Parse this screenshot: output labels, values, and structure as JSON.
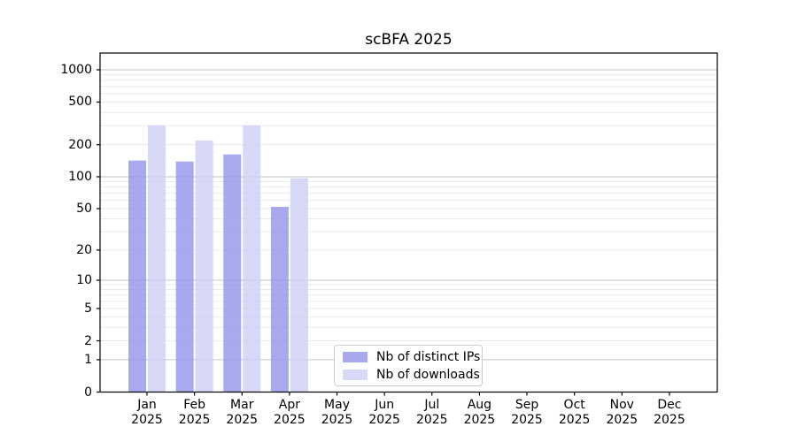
{
  "chart_data": {
    "type": "bar",
    "title": "scBFA 2025",
    "categories": [
      "Jan",
      "Feb",
      "Mar",
      "Apr",
      "May",
      "Jun",
      "Jul",
      "Aug",
      "Sep",
      "Oct",
      "Nov",
      "Dec"
    ],
    "category_year": "2025",
    "series": [
      {
        "name": "Nb of distinct IPs",
        "color": "#9494eb",
        "values": [
          142,
          139,
          162,
          52,
          0,
          0,
          0,
          0,
          0,
          0,
          0,
          0
        ]
      },
      {
        "name": "Nb of downloads",
        "color": "#cecef5",
        "values": [
          303,
          219,
          303,
          97,
          0,
          0,
          0,
          0,
          0,
          0,
          0,
          0
        ]
      }
    ],
    "bar_opacity": 0.8,
    "y_axis": {
      "scale": "log1p",
      "tick_values": [
        0,
        1,
        2,
        5,
        10,
        20,
        50,
        100,
        200,
        500,
        1000
      ],
      "range_top_value": 1430
    },
    "x_axis": {
      "tick_label_format": "Month over 2025"
    },
    "grid": {
      "visible": true,
      "major_values": [
        1,
        10,
        100,
        1000
      ],
      "minor_values": [
        2,
        3,
        4,
        5,
        6,
        7,
        8,
        9,
        20,
        30,
        40,
        50,
        60,
        70,
        80,
        90,
        200,
        300,
        400,
        500,
        600,
        700,
        800,
        900
      ],
      "major_color": "#c3c3c3",
      "minor_color": "#ebebeb"
    },
    "legend": {
      "position": "lower center inside plot"
    },
    "frame_color": "#000000",
    "text_color": "#000000",
    "background_color": "#ffffff"
  }
}
